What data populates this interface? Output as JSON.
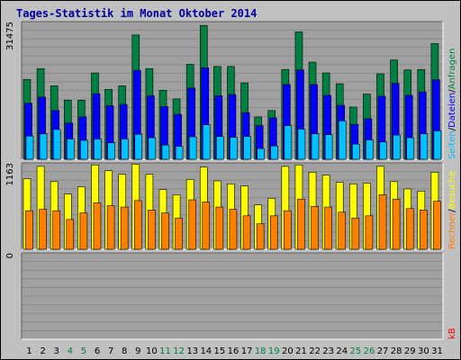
{
  "title": "Tages-Statistik im Monat Oktober 2014",
  "colors": {
    "background": "#c0c0c0",
    "plot_background": "#a0a0a0",
    "title": "#0000a0",
    "anfragen": "#008040",
    "dateien": "#0000ff",
    "seiten": "#00c0ff",
    "besuche": "#ffff00",
    "rechner": "#ff8000",
    "kb": "#ff0000",
    "weekend_label": "#008040",
    "weekday_label": "#000000"
  },
  "chart_data": [
    {
      "type": "bar",
      "panel": "hits",
      "y_tick_label": "31475",
      "ylim": [
        0,
        31475
      ],
      "categories": [
        "1",
        "2",
        "3",
        "4",
        "5",
        "6",
        "7",
        "8",
        "9",
        "10",
        "11",
        "12",
        "13",
        "14",
        "15",
        "16",
        "17",
        "18",
        "19",
        "20",
        "21",
        "22",
        "23",
        "24",
        "25",
        "26",
        "27",
        "28",
        "29",
        "30",
        "31"
      ],
      "series": [
        {
          "name": "Anfragen",
          "values": [
            18500,
            21000,
            17000,
            13700,
            13700,
            20000,
            16200,
            17000,
            28800,
            21000,
            16000,
            14000,
            22000,
            31000,
            21500,
            21500,
            17700,
            9800,
            11300,
            20800,
            29500,
            22500,
            20000,
            17500,
            12100,
            15100,
            19800,
            23000,
            20700,
            20800,
            26800
          ]
        },
        {
          "name": "Dateien",
          "values": [
            13000,
            14400,
            11300,
            8400,
            9800,
            15200,
            12400,
            12700,
            20600,
            14700,
            12200,
            10400,
            16500,
            21200,
            14700,
            15000,
            10800,
            7800,
            9600,
            17300,
            20700,
            17300,
            14800,
            12500,
            8100,
            9400,
            14600,
            17600,
            14800,
            15600,
            18400
          ]
        },
        {
          "name": "Seiten",
          "values": [
            5400,
            5900,
            6900,
            4700,
            4400,
            4700,
            3800,
            4700,
            5800,
            5000,
            3300,
            3000,
            5200,
            8000,
            5300,
            5100,
            5300,
            2500,
            3100,
            7800,
            7000,
            5900,
            5700,
            8900,
            3500,
            4500,
            4000,
            5600,
            5000,
            5900,
            6600
          ]
        }
      ],
      "legend": [
        "Anfragen",
        "Dateien",
        "Seiten"
      ]
    },
    {
      "type": "bar",
      "panel": "visits",
      "y_tick_label": "1163",
      "ylim": [
        0,
        1163
      ],
      "categories": [
        "1",
        "2",
        "3",
        "4",
        "5",
        "6",
        "7",
        "8",
        "9",
        "10",
        "11",
        "12",
        "13",
        "14",
        "15",
        "16",
        "17",
        "18",
        "19",
        "20",
        "21",
        "22",
        "23",
        "24",
        "25",
        "26",
        "27",
        "28",
        "29",
        "30",
        "31"
      ],
      "series": [
        {
          "name": "Besuche",
          "values": [
            970,
            1140,
            930,
            760,
            860,
            1160,
            1080,
            1030,
            1170,
            1030,
            820,
            750,
            960,
            1130,
            940,
            900,
            870,
            610,
            700,
            1140,
            1160,
            1060,
            1020,
            920,
            900,
            910,
            1140,
            930,
            830,
            800,
            1060
          ]
        },
        {
          "name": "Rechner",
          "values": [
            530,
            550,
            530,
            410,
            500,
            640,
            600,
            580,
            670,
            540,
            500,
            430,
            680,
            650,
            580,
            550,
            460,
            350,
            460,
            530,
            690,
            590,
            580,
            510,
            430,
            460,
            750,
            690,
            560,
            540,
            660
          ]
        }
      ],
      "legend": [
        "Rechner",
        "Besuche"
      ]
    },
    {
      "type": "bar",
      "panel": "kb",
      "y_tick_label": "0",
      "ylim": [
        0,
        1
      ],
      "categories": [
        "1",
        "2",
        "3",
        "4",
        "5",
        "6",
        "7",
        "8",
        "9",
        "10",
        "11",
        "12",
        "13",
        "14",
        "15",
        "16",
        "17",
        "18",
        "19",
        "20",
        "21",
        "22",
        "23",
        "24",
        "25",
        "26",
        "27",
        "28",
        "29",
        "30",
        "31"
      ],
      "series": [
        {
          "name": "kB",
          "values": [
            0,
            0,
            0,
            0,
            0,
            0,
            0,
            0,
            0,
            0,
            0,
            0,
            0,
            0,
            0,
            0,
            0,
            0,
            0,
            0,
            0,
            0,
            0,
            0,
            0,
            0,
            0,
            0,
            0,
            0,
            0
          ]
        }
      ],
      "legend": [
        "kB"
      ]
    }
  ],
  "weekend_days": [
    "4",
    "5",
    "11",
    "12",
    "18",
    "19",
    "25",
    "26"
  ],
  "right_legend": {
    "hits": {
      "anfragen": "Anfragen",
      "sep1": "/",
      "dateien": "Dateien",
      "sep2": "/",
      "seiten": "Seiten"
    },
    "visits": {
      "besuche": "Besuche",
      "sep": "/",
      "rechner": "Rechner"
    },
    "kb": {
      "kb": "kB"
    }
  }
}
